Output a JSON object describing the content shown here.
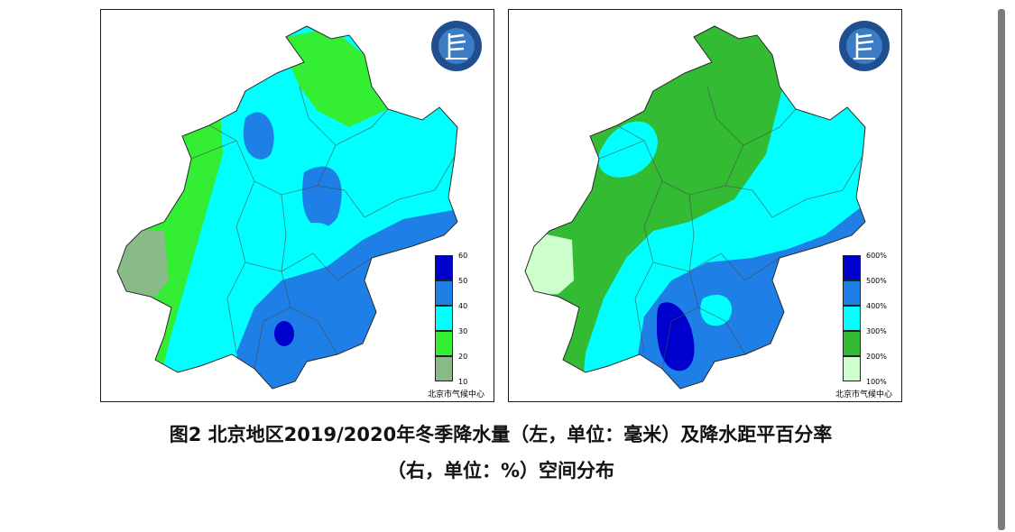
{
  "figure": {
    "caption_line1": "图2    北京地区2019/2020年冬季降水量（左，单位：毫米）及降水距平百分率",
    "caption_line2": "（右，单位：%）空间分布"
  },
  "maps": [
    {
      "id": "precipitation",
      "source": "北京市气候中心",
      "legend": {
        "ticks": [
          "60",
          "50",
          "40",
          "30",
          "20",
          "10"
        ],
        "colors": [
          "#0000cc",
          "#1e7fe6",
          "#00ffff",
          "#33ee33",
          "#88bb88"
        ]
      }
    },
    {
      "id": "anomaly",
      "source": "北京市气候中心",
      "legend": {
        "ticks": [
          "600%",
          "500%",
          "400%",
          "300%",
          "200%",
          "100%"
        ],
        "colors": [
          "#0000cc",
          "#1e7fe6",
          "#00ffff",
          "#33bb33",
          "#ccffcc"
        ]
      }
    }
  ],
  "icons": {
    "logo": "weather-service-logo-icon",
    "scrollbar": "scrollbar"
  }
}
